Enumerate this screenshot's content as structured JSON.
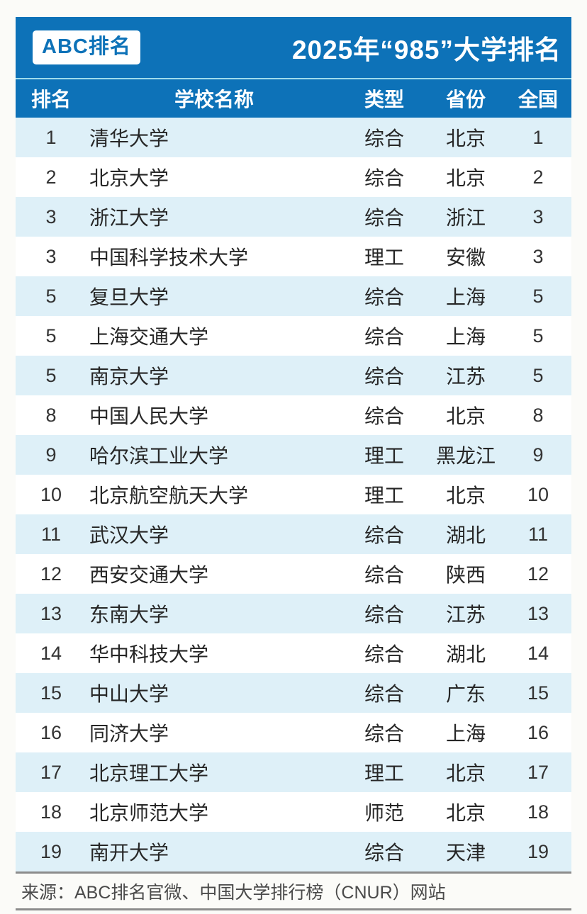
{
  "header": {
    "logo_text": "ABC排名",
    "title": "2025年“985”大学排名"
  },
  "table": {
    "columns": [
      "排名",
      "学校名称",
      "类型",
      "省份",
      "全国"
    ],
    "rows": [
      {
        "rank": "1",
        "name": "清华大学",
        "type": "综合",
        "province": "北京",
        "national": "1"
      },
      {
        "rank": "2",
        "name": "北京大学",
        "type": "综合",
        "province": "北京",
        "national": "2"
      },
      {
        "rank": "3",
        "name": "浙江大学",
        "type": "综合",
        "province": "浙江",
        "national": "3"
      },
      {
        "rank": "3",
        "name": "中国科学技术大学",
        "type": "理工",
        "province": "安徽",
        "national": "3"
      },
      {
        "rank": "5",
        "name": "复旦大学",
        "type": "综合",
        "province": "上海",
        "national": "5"
      },
      {
        "rank": "5",
        "name": "上海交通大学",
        "type": "综合",
        "province": "上海",
        "national": "5"
      },
      {
        "rank": "5",
        "name": "南京大学",
        "type": "综合",
        "province": "江苏",
        "national": "5"
      },
      {
        "rank": "8",
        "name": "中国人民大学",
        "type": "综合",
        "province": "北京",
        "national": "8"
      },
      {
        "rank": "9",
        "name": "哈尔滨工业大学",
        "type": "理工",
        "province": "黑龙江",
        "national": "9"
      },
      {
        "rank": "10",
        "name": "北京航空航天大学",
        "type": "理工",
        "province": "北京",
        "national": "10"
      },
      {
        "rank": "11",
        "name": "武汉大学",
        "type": "综合",
        "province": "湖北",
        "national": "11"
      },
      {
        "rank": "12",
        "name": "西安交通大学",
        "type": "综合",
        "province": "陕西",
        "national": "12"
      },
      {
        "rank": "13",
        "name": "东南大学",
        "type": "综合",
        "province": "江苏",
        "national": "13"
      },
      {
        "rank": "14",
        "name": "华中科技大学",
        "type": "综合",
        "province": "湖北",
        "national": "14"
      },
      {
        "rank": "15",
        "name": "中山大学",
        "type": "综合",
        "province": "广东",
        "national": "15"
      },
      {
        "rank": "16",
        "name": "同济大学",
        "type": "综合",
        "province": "上海",
        "national": "16"
      },
      {
        "rank": "17",
        "name": "北京理工大学",
        "type": "理工",
        "province": "北京",
        "national": "17"
      },
      {
        "rank": "18",
        "name": "北京师范大学",
        "type": "师范",
        "province": "北京",
        "national": "18"
      },
      {
        "rank": "19",
        "name": "南开大学",
        "type": "综合",
        "province": "天津",
        "national": "19"
      }
    ]
  },
  "footer": {
    "source": "来源：ABC排名官微、中国大学排行榜（CNUR）网站"
  },
  "colors": {
    "accent_blue": "#0d72b8",
    "stripe_light_blue": "#def0f8",
    "divider_cyan": "#9fdcec",
    "footer_line_gray": "#8c8c8c",
    "header_text": "#ffffff",
    "body_text": "#262626"
  }
}
